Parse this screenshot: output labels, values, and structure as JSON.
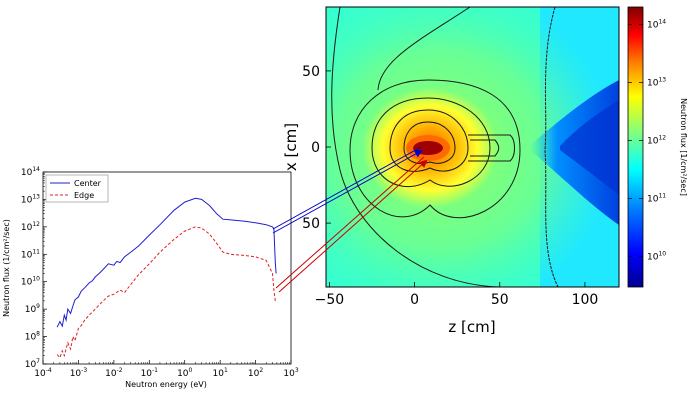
{
  "chart_data": [
    {
      "id": "spectrum",
      "type": "line",
      "title": "",
      "xlabel": "Neutron energy (eV)",
      "ylabel": "Neutron flux (1/cm²/sec)",
      "xscale": "log",
      "yscale": "log",
      "xlim": [
        0.0001,
        1000
      ],
      "ylim": [
        10000000,
        100000000000000
      ],
      "xticks": [
        {
          "base": "10",
          "exp": "-4",
          "value": 0.0001
        },
        {
          "base": "10",
          "exp": "-3",
          "value": 0.001
        },
        {
          "base": "10",
          "exp": "-2",
          "value": 0.01
        },
        {
          "base": "10",
          "exp": "-1",
          "value": 0.1
        },
        {
          "base": "10",
          "exp": "0",
          "value": 1
        },
        {
          "base": "10",
          "exp": "1",
          "value": 10
        },
        {
          "base": "10",
          "exp": "2",
          "value": 100
        },
        {
          "base": "10",
          "exp": "3",
          "value": 1000
        }
      ],
      "yticks": [
        {
          "base": "10",
          "exp": "7",
          "value": 10000000
        },
        {
          "base": "10",
          "exp": "8",
          "value": 100000000
        },
        {
          "base": "10",
          "exp": "9",
          "value": 1000000000
        },
        {
          "base": "10",
          "exp": "10",
          "value": 10000000000
        },
        {
          "base": "10",
          "exp": "11",
          "value": 100000000000
        },
        {
          "base": "10",
          "exp": "12",
          "value": 1000000000000
        },
        {
          "base": "10",
          "exp": "13",
          "value": 10000000000000
        },
        {
          "base": "10",
          "exp": "14",
          "value": 100000000000000
        }
      ],
      "legend_position": "top-left",
      "grid": false,
      "series": [
        {
          "name": "Center",
          "color": "#1f1fd0",
          "style": "solid",
          "points": [
            [
              0.00025,
              220000000.0
            ],
            [
              0.0003,
              350000000.0
            ],
            [
              0.00035,
              240000000.0
            ],
            [
              0.0004,
              600000000.0
            ],
            [
              0.00045,
              400000000.0
            ],
            [
              0.0005,
              1000000000.0
            ],
            [
              0.0006,
              700000000.0
            ],
            [
              0.0007,
              1300000000.0
            ],
            [
              0.0008,
              2200000000.0
            ],
            [
              0.001,
              2800000000.0
            ],
            [
              0.0012,
              4500000000.0
            ],
            [
              0.0015,
              6000000000.0
            ],
            [
              0.002,
              9000000000.0
            ],
            [
              0.0025,
              11000000000.0
            ],
            [
              0.003,
              15000000000.0
            ],
            [
              0.004,
              21000000000.0
            ],
            [
              0.005,
              28000000000.0
            ],
            [
              0.007,
              45000000000.0
            ],
            [
              0.01,
              40000000000.0
            ],
            [
              0.012,
              55000000000.0
            ],
            [
              0.015,
              50000000000.0
            ],
            [
              0.02,
              80000000000.0
            ],
            [
              0.03,
              120000000000.0
            ],
            [
              0.05,
              200000000000.0
            ],
            [
              0.1,
              500000000000.0
            ],
            [
              0.2,
              1200000000000.0
            ],
            [
              0.5,
              4000000000000.0
            ],
            [
              1.0,
              8000000000000.0
            ],
            [
              2.0,
              11000000000000.0
            ],
            [
              3.0,
              10000000000000.0
            ],
            [
              5.0,
              6000000000000.0
            ],
            [
              8.0,
              3000000000000.0
            ],
            [
              12.0,
              1900000000000.0
            ],
            [
              20.0,
              1800000000000.0
            ],
            [
              50.0,
              1600000000000.0
            ],
            [
              100.0,
              1400000000000.0
            ],
            [
              200.0,
              1200000000000.0
            ],
            [
              300.0,
              1000000000000.0
            ],
            [
              330.0,
              850000000000.0
            ],
            [
              360.0,
              50000000000.0
            ],
            [
              380.0,
              20000000000.0
            ]
          ]
        },
        {
          "name": "Edge",
          "color": "#e02020",
          "style": "dashed",
          "points": [
            [
              0.00025,
              22000000.0
            ],
            [
              0.0003,
              17000000.0
            ],
            [
              0.00035,
              30000000.0
            ],
            [
              0.0004,
              20000000.0
            ],
            [
              0.0005,
              60000000.0
            ],
            [
              0.0006,
              35000000.0
            ],
            [
              0.0007,
              100000000.0
            ],
            [
              0.0008,
              70000000.0
            ],
            [
              0.001,
              200000000.0
            ],
            [
              0.0012,
              250000000.0
            ],
            [
              0.0015,
              400000000.0
            ],
            [
              0.002,
              600000000.0
            ],
            [
              0.003,
              1000000000.0
            ],
            [
              0.004,
              1500000000.0
            ],
            [
              0.005,
              2000000000.0
            ],
            [
              0.007,
              3000000000.0
            ],
            [
              0.01,
              3500000000.0
            ],
            [
              0.015,
              5000000000.0
            ],
            [
              0.02,
              4000000000.0
            ],
            [
              0.03,
              8000000000.0
            ],
            [
              0.05,
              18000000000.0
            ],
            [
              0.1,
              45000000000.0
            ],
            [
              0.2,
              120000000000.0
            ],
            [
              0.5,
              350000000000.0
            ],
            [
              1.0,
              700000000000.0
            ],
            [
              2.0,
              1000000000000.0
            ],
            [
              3.0,
              900000000000.0
            ],
            [
              5.0,
              550000000000.0
            ],
            [
              8.0,
              250000000000.0
            ],
            [
              12.0,
              120000000000.0
            ],
            [
              20.0,
              100000000000.0
            ],
            [
              50.0,
              90000000000.0
            ],
            [
              100.0,
              80000000000.0
            ],
            [
              200.0,
              60000000000.0
            ],
            [
              300.0,
              20000000000.0
            ],
            [
              330.0,
              5000000000.0
            ],
            [
              360.0,
              2000000000.0
            ]
          ]
        }
      ]
    },
    {
      "id": "fluxmap",
      "type": "heatmap",
      "title": "",
      "xlabel": "z [cm]",
      "ylabel": "x [cm]",
      "xlim": [
        -52,
        120
      ],
      "ylim": [
        -92,
        92
      ],
      "xticks": [
        "−50",
        "0",
        "50",
        "100"
      ],
      "xtick_values": [
        -50,
        0,
        50,
        100
      ],
      "yticks": [
        "50",
        "0",
        "50"
      ],
      "ytick_values": [
        50,
        0,
        -50
      ],
      "colorbar": {
        "label": "Neutron flux [1/cm²/sec]",
        "scale": "log",
        "range": [
          3000000000,
          200000000000000
        ],
        "ticks": [
          {
            "base": "10",
            "exp": "10",
            "value": 10000000000
          },
          {
            "base": "10",
            "exp": "11",
            "value": 100000000000
          },
          {
            "base": "10",
            "exp": "12",
            "value": 1000000000000
          },
          {
            "base": "10",
            "exp": "13",
            "value": 10000000000000
          },
          {
            "base": "10",
            "exp": "14",
            "value": 100000000000000
          }
        ],
        "colors": [
          "#00008f",
          "#0000ff",
          "#0080ff",
          "#00ffff",
          "#80ff80",
          "#ffff00",
          "#ff8000",
          "#ff0000",
          "#800000"
        ]
      }
    }
  ],
  "arrows": [
    {
      "name": "center",
      "color": "#0000cc"
    },
    {
      "name": "edge",
      "color": "#cc0000"
    }
  ]
}
